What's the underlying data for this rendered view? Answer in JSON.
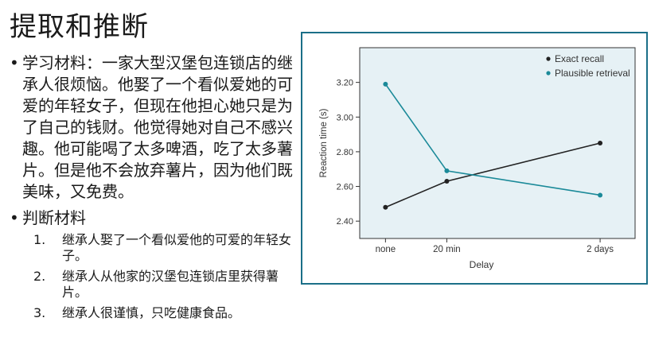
{
  "slide": {
    "title": "提取和推断",
    "bullets": [
      {
        "text": "学习材料：一家大型汉堡包连锁店的继承人很烦恼。他娶了一个看似爱她的可爱的年轻女子，但现在他担心她只是为了自己的钱财。他觉得她对自己不感兴趣。他可能喝了太多啤酒，吃了太多薯片。但是他不会放弃薯片，因为他们既美味，又免费。"
      },
      {
        "text": "判断材料"
      }
    ],
    "judgments": [
      {
        "num": "1.",
        "text": "继承人娶了一个看似爱他的可爱的年轻女子。"
      },
      {
        "num": "2.",
        "text": "继承人从他家的汉堡包连锁店里获得薯片。"
      },
      {
        "num": "3.",
        "text": "继承人很谨慎，只吃健康食品。"
      }
    ],
    "bullet_symbol": "•"
  },
  "chart_data": {
    "type": "line",
    "categories": [
      "none",
      "20 min",
      "2 days"
    ],
    "x_positions": [
      0,
      1,
      3.5
    ],
    "xlabel": "Delay",
    "ylabel": "Reaction time (s)",
    "ylim": [
      2.3,
      3.4
    ],
    "yticks": [
      2.4,
      2.6,
      2.8,
      3.0,
      3.2
    ],
    "ytick_labels": [
      "2.40",
      "2.60",
      "2.80",
      "3.00",
      "3.20"
    ],
    "series": [
      {
        "name": "Exact recall",
        "values": [
          2.48,
          2.63,
          2.85
        ],
        "color": "#222222"
      },
      {
        "name": "Plausible retrieval",
        "values": [
          3.19,
          2.69,
          2.55
        ],
        "color": "#1b8a99"
      }
    ],
    "legend_position": "top-right",
    "plot_background": "#e6f1f5",
    "frame_color": "#1b6f88",
    "grid": false
  }
}
